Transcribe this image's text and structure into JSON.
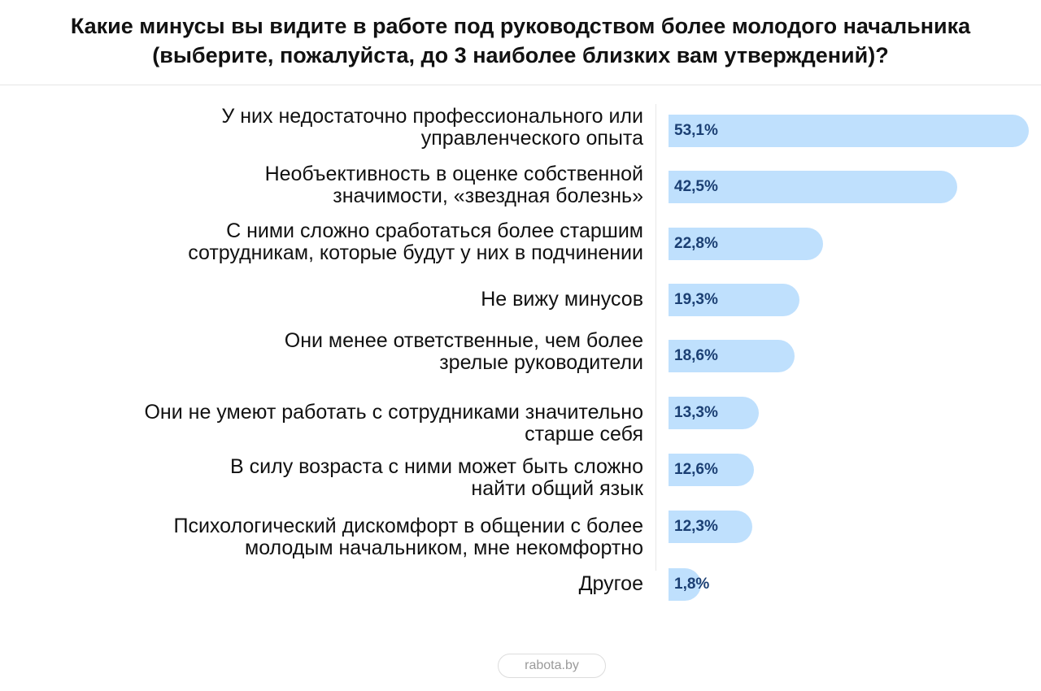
{
  "chart_data": {
    "type": "bar",
    "orientation": "horizontal",
    "title": [
      "Какие минусы вы видите в работе под руководством более молодого начальника",
      "(выберите, пожалуйста, до 3 наиболее близких вам утверждений)?"
    ],
    "categories": [
      [
        "У них недостаточно профессионального или",
        "управленческого опыта"
      ],
      [
        "Необъективность в оценке собственной",
        "значимости, «звездная болезнь»"
      ],
      [
        "С ними сложно сработаться более старшим",
        "сотрудникам, которые будут у них в подчинении"
      ],
      [
        "Не вижу минусов"
      ],
      [
        "Они менее ответственные, чем более",
        "зрелые руководители"
      ],
      [
        "Они не умеют работать с сотрудниками значительно",
        "старше себя"
      ],
      [
        "В силу возраста с ними может быть сложно",
        "найти общий язык"
      ],
      [
        "Психологический дискомфорт в общении с более",
        "молодым начальником, мне некомфортно"
      ],
      [
        "Другое"
      ]
    ],
    "values": [
      53.1,
      42.5,
      22.8,
      19.3,
      18.6,
      13.3,
      12.6,
      12.3,
      1.8
    ],
    "value_labels": [
      "53,1%",
      "42,5%",
      "22,8%",
      "19,3%",
      "18,6%",
      "13,3%",
      "12,6%",
      "12,3%",
      "1,8%"
    ],
    "unit": "%",
    "xlim": [
      0,
      53.1
    ],
    "bar_color": "#bfe0fd",
    "value_label_color": "#1b3f73"
  },
  "source": "rabota.by"
}
